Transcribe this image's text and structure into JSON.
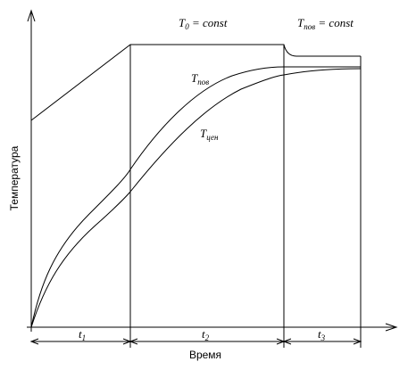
{
  "axes": {
    "y_label": "Температура",
    "x_label": "Время"
  },
  "annotations": [
    {
      "symbol": "T",
      "subscript": "0",
      "rest": " = const"
    },
    {
      "symbol": "T",
      "subscript": "пов",
      "rest": " = const"
    }
  ],
  "curves": [
    {
      "symbol": "T",
      "subscript": "пов"
    },
    {
      "symbol": "T",
      "subscript": "цен"
    }
  ],
  "intervals": [
    {
      "symbol": "t",
      "subscript": "1"
    },
    {
      "symbol": "t",
      "subscript": "2"
    },
    {
      "symbol": "t",
      "subscript": "3"
    }
  ]
}
